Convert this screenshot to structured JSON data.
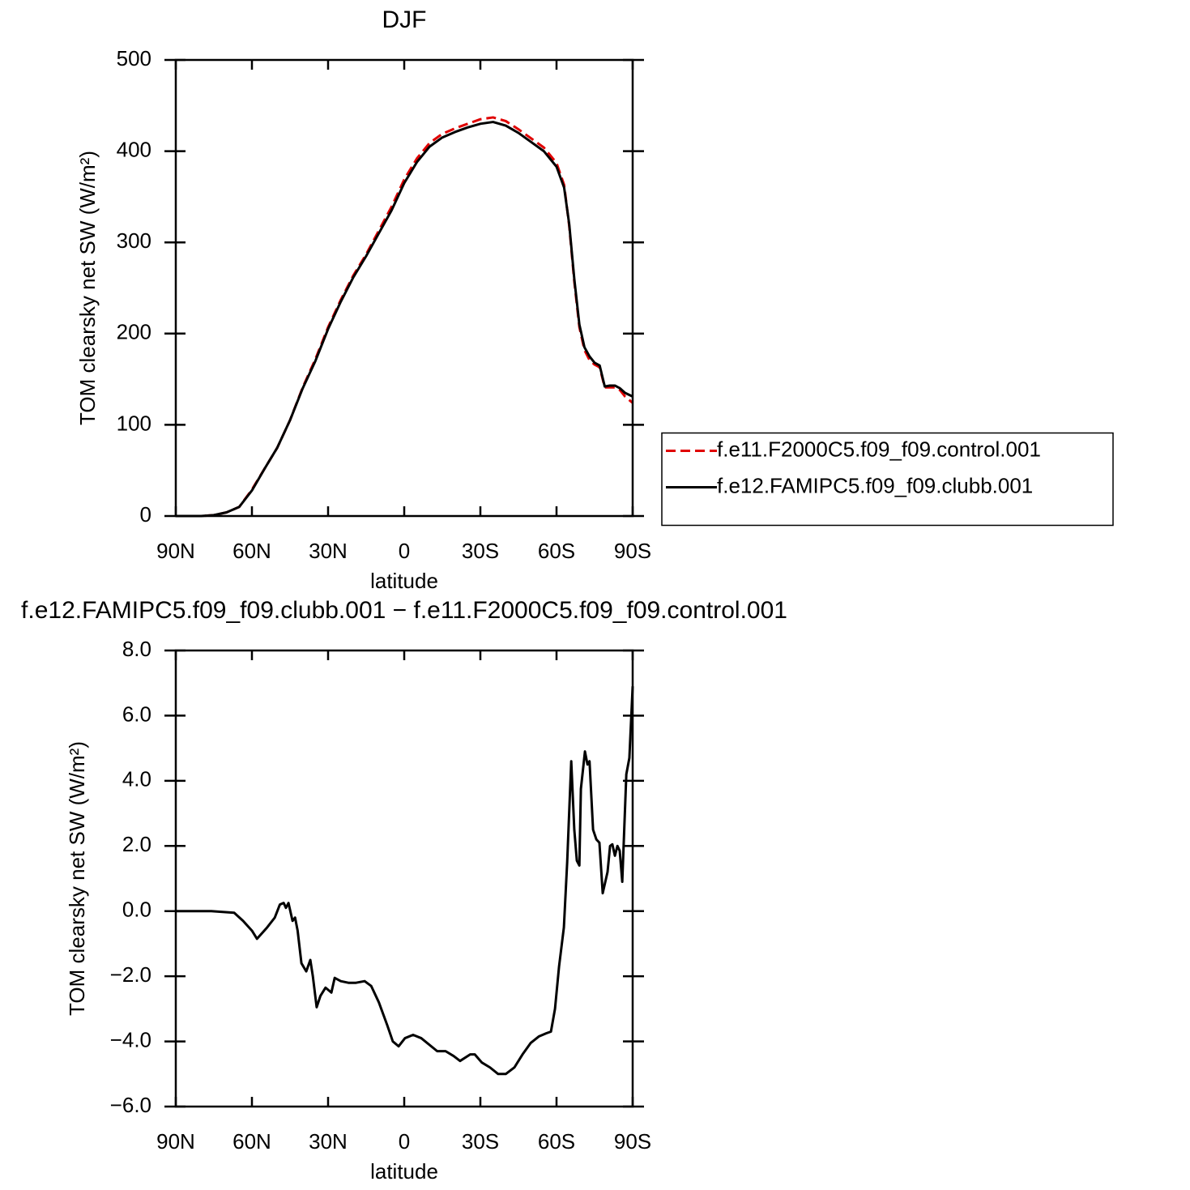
{
  "chart_data": [
    {
      "type": "line",
      "title": "DJF",
      "xlabel": "latitude",
      "ylabel": "TOM clearsky net SW (W/m²)",
      "x": [
        90,
        80,
        75,
        70,
        65,
        60,
        55,
        50,
        45,
        40,
        35,
        30,
        25,
        20,
        15,
        10,
        5,
        0,
        -5,
        -10,
        -15,
        -20,
        -25,
        -30,
        -35,
        -40,
        -45,
        -50,
        -55,
        -60,
        -63,
        -65,
        -67,
        -69,
        -71,
        -73,
        -75,
        -77,
        -79,
        -81,
        -83,
        -85,
        -87,
        -90
      ],
      "series": [
        {
          "name": "f.e11.F2000C5.f09_f09.control.001",
          "color": "#e00000",
          "dash": "dashed",
          "values": [
            0,
            0,
            1,
            4,
            10,
            29,
            52,
            75,
            105,
            141,
            172,
            207,
            237,
            264,
            287,
            313,
            339,
            369,
            392,
            409,
            419,
            425,
            430,
            435,
            437,
            433,
            424,
            414,
            404,
            387,
            363,
            318,
            257,
            207,
            182,
            171,
            166,
            163,
            141,
            141,
            141,
            138,
            131,
            124
          ]
        },
        {
          "name": "f.e12.FAMIPC5.f09_f09.clubb.001",
          "color": "#000000",
          "dash": "solid",
          "values": [
            0,
            0,
            1,
            4,
            10,
            28,
            52,
            75,
            105,
            140,
            170,
            205,
            235,
            262,
            285,
            310,
            335,
            365,
            388,
            405,
            415,
            421,
            426,
            430,
            432,
            428,
            420,
            410,
            400,
            383,
            360,
            320,
            260,
            210,
            185,
            175,
            168,
            165,
            142,
            143,
            143,
            140,
            135,
            131
          ]
        }
      ],
      "xlim": [
        90,
        -90
      ],
      "xticks": [
        {
          "value": 90,
          "label": "90N"
        },
        {
          "value": 60,
          "label": "60N"
        },
        {
          "value": 30,
          "label": "30N"
        },
        0,
        {
          "value": -30,
          "label": "30S"
        },
        {
          "value": -60,
          "label": "60S"
        },
        {
          "value": -90,
          "label": "90S"
        }
      ],
      "ylim": [
        0,
        500
      ],
      "yticks": [
        0,
        100,
        200,
        300,
        400,
        500
      ],
      "legend": "right"
    },
    {
      "type": "line",
      "title": "f.e12.FAMIPC5.f09_f09.clubb.001 − f.e11.F2000C5.f09_f09.control.001",
      "xlabel": "latitude",
      "ylabel": "TOM clearsky net SW (W/m²)",
      "x": [
        90,
        76,
        67,
        63.5,
        60,
        58,
        54,
        51,
        49,
        47.5,
        46.6,
        45.6,
        44,
        43,
        42,
        40.5,
        38.6,
        37,
        36,
        34.5,
        33,
        31,
        28.7,
        27.4,
        25,
        22,
        19,
        15.6,
        13,
        10,
        6.7,
        4.5,
        2.2,
        -0.3,
        -3.5,
        -6.7,
        -13,
        -16.3,
        -19.5,
        -22,
        -26,
        -27.8,
        -30.6,
        -33.8,
        -37,
        -40,
        -43.4,
        -46.6,
        -49.8,
        -53,
        -56,
        -57.8,
        -59.4,
        -61,
        -62.9,
        -64.2,
        -65.8,
        -67,
        -68,
        -69,
        -69.6,
        -71.2,
        -72.2,
        -73,
        -74.4,
        -75.7,
        -76.9,
        -78.2,
        -80.1,
        -81.1,
        -82,
        -83,
        -84,
        -84.9,
        -85.9,
        -87.5,
        -88.7,
        -90
      ],
      "series": [
        {
          "color": "#000000",
          "dash": "solid",
          "values": [
            0,
            0,
            -0.05,
            -0.3,
            -0.6,
            -0.85,
            -0.5,
            -0.2,
            0.2,
            0.25,
            0.1,
            0.25,
            -0.3,
            -0.2,
            -0.6,
            -1.6,
            -1.85,
            -1.5,
            -2.0,
            -2.95,
            -2.6,
            -2.35,
            -2.5,
            -2.05,
            -2.15,
            -2.2,
            -2.2,
            -2.15,
            -2.3,
            -2.8,
            -3.5,
            -4.0,
            -4.15,
            -3.9,
            -3.8,
            -3.9,
            -4.3,
            -4.3,
            -4.45,
            -4.6,
            -4.4,
            -4.4,
            -4.65,
            -4.8,
            -5.0,
            -5.0,
            -4.8,
            -4.4,
            -4.05,
            -3.85,
            -3.75,
            -3.7,
            -3.0,
            -1.7,
            -0.5,
            1.5,
            4.6,
            2.5,
            1.55,
            1.4,
            3.75,
            4.9,
            4.5,
            4.6,
            2.5,
            2.2,
            2.1,
            0.55,
            1.2,
            2.0,
            2.05,
            1.7,
            2.0,
            1.85,
            0.9,
            4.2,
            4.7,
            6.9
          ]
        }
      ],
      "xlim": [
        90,
        -90
      ],
      "xticks": [
        {
          "value": 90,
          "label": "90N"
        },
        {
          "value": 60,
          "label": "60N"
        },
        {
          "value": 30,
          "label": "30N"
        },
        0,
        {
          "value": -30,
          "label": "30S"
        },
        {
          "value": -60,
          "label": "60S"
        },
        {
          "value": -90,
          "label": "90S"
        }
      ],
      "ylim": [
        -6,
        8
      ],
      "yticks": [
        {
          "value": -6,
          "label": "−6.0"
        },
        {
          "value": -4,
          "label": "−4.0"
        },
        {
          "value": -2,
          "label": "−2.0"
        },
        {
          "value": 0,
          "label": "0.0"
        },
        {
          "value": 2,
          "label": "2.0"
        },
        {
          "value": 4,
          "label": "4.0"
        },
        {
          "value": 6,
          "label": "6.0"
        },
        {
          "value": 8,
          "label": "8.0"
        }
      ]
    }
  ]
}
